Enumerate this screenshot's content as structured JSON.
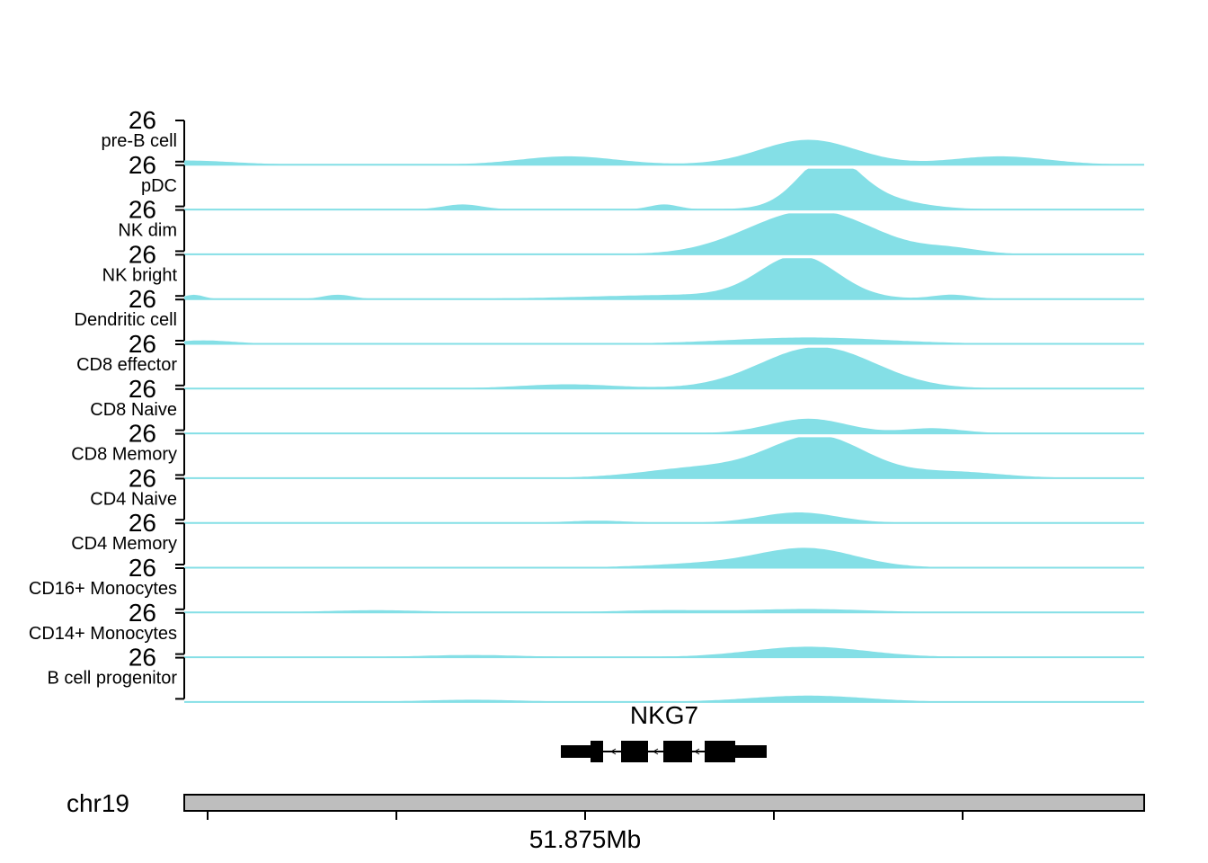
{
  "chart_data": {
    "type": "area",
    "track_max_label": "26",
    "color": "#84DFE6",
    "tracks": [
      {
        "name": "pre-B cell",
        "peaks": [
          [
            0.0,
            0.1,
            0.05
          ],
          [
            0.4,
            0.2,
            0.05
          ],
          [
            0.65,
            0.6,
            0.05
          ],
          [
            0.85,
            0.2,
            0.05
          ]
        ]
      },
      {
        "name": "pDC",
        "peaks": [
          [
            0.29,
            0.12,
            0.02
          ],
          [
            0.5,
            0.12,
            0.015
          ],
          [
            0.67,
            1.0,
            0.03
          ],
          [
            0.7,
            0.35,
            0.05
          ]
        ]
      },
      {
        "name": "NK dim",
        "peaks": [
          [
            0.66,
            1.0,
            0.06
          ],
          [
            0.59,
            0.15,
            0.05
          ],
          [
            0.8,
            0.12,
            0.03
          ]
        ]
      },
      {
        "name": "NK bright",
        "peaks": [
          [
            0.01,
            0.1,
            0.01
          ],
          [
            0.16,
            0.1,
            0.015
          ],
          [
            0.53,
            0.1,
            0.1
          ],
          [
            0.64,
            1.0,
            0.04
          ],
          [
            0.8,
            0.1,
            0.02
          ]
        ]
      },
      {
        "name": "Dendritic cell",
        "peaks": [
          [
            0.02,
            0.08,
            0.03
          ],
          [
            0.65,
            0.15,
            0.08
          ]
        ]
      },
      {
        "name": "CD8 effector",
        "peaks": [
          [
            0.66,
            1.0,
            0.06
          ],
          [
            0.4,
            0.1,
            0.05
          ]
        ]
      },
      {
        "name": "CD8 Naive",
        "peaks": [
          [
            0.65,
            0.35,
            0.04
          ],
          [
            0.78,
            0.12,
            0.03
          ]
        ]
      },
      {
        "name": "CD8 Memory",
        "peaks": [
          [
            0.66,
            1.0,
            0.05
          ],
          [
            0.54,
            0.25,
            0.06
          ],
          [
            0.8,
            0.15,
            0.05
          ]
        ]
      },
      {
        "name": "CD4 Naive",
        "peaks": [
          [
            0.64,
            0.25,
            0.04
          ],
          [
            0.43,
            0.05,
            0.03
          ]
        ]
      },
      {
        "name": "CD4 Memory",
        "peaks": [
          [
            0.65,
            0.45,
            0.05
          ],
          [
            0.55,
            0.1,
            0.06
          ]
        ]
      },
      {
        "name": "CD16+ Monocytes",
        "peaks": [
          [
            0.2,
            0.05,
            0.05
          ],
          [
            0.5,
            0.05,
            0.05
          ],
          [
            0.65,
            0.08,
            0.06
          ]
        ]
      },
      {
        "name": "CD14+ Monocytes",
        "peaks": [
          [
            0.65,
            0.25,
            0.06
          ],
          [
            0.3,
            0.05,
            0.05
          ]
        ]
      },
      {
        "name": "B cell progenitor",
        "peaks": [
          [
            0.65,
            0.15,
            0.06
          ],
          [
            0.3,
            0.05,
            0.05
          ]
        ]
      }
    ],
    "gene": {
      "name": "NKG7",
      "strand": "-"
    },
    "chromosome": "chr19",
    "x_tick_label": "51.875Mb"
  }
}
